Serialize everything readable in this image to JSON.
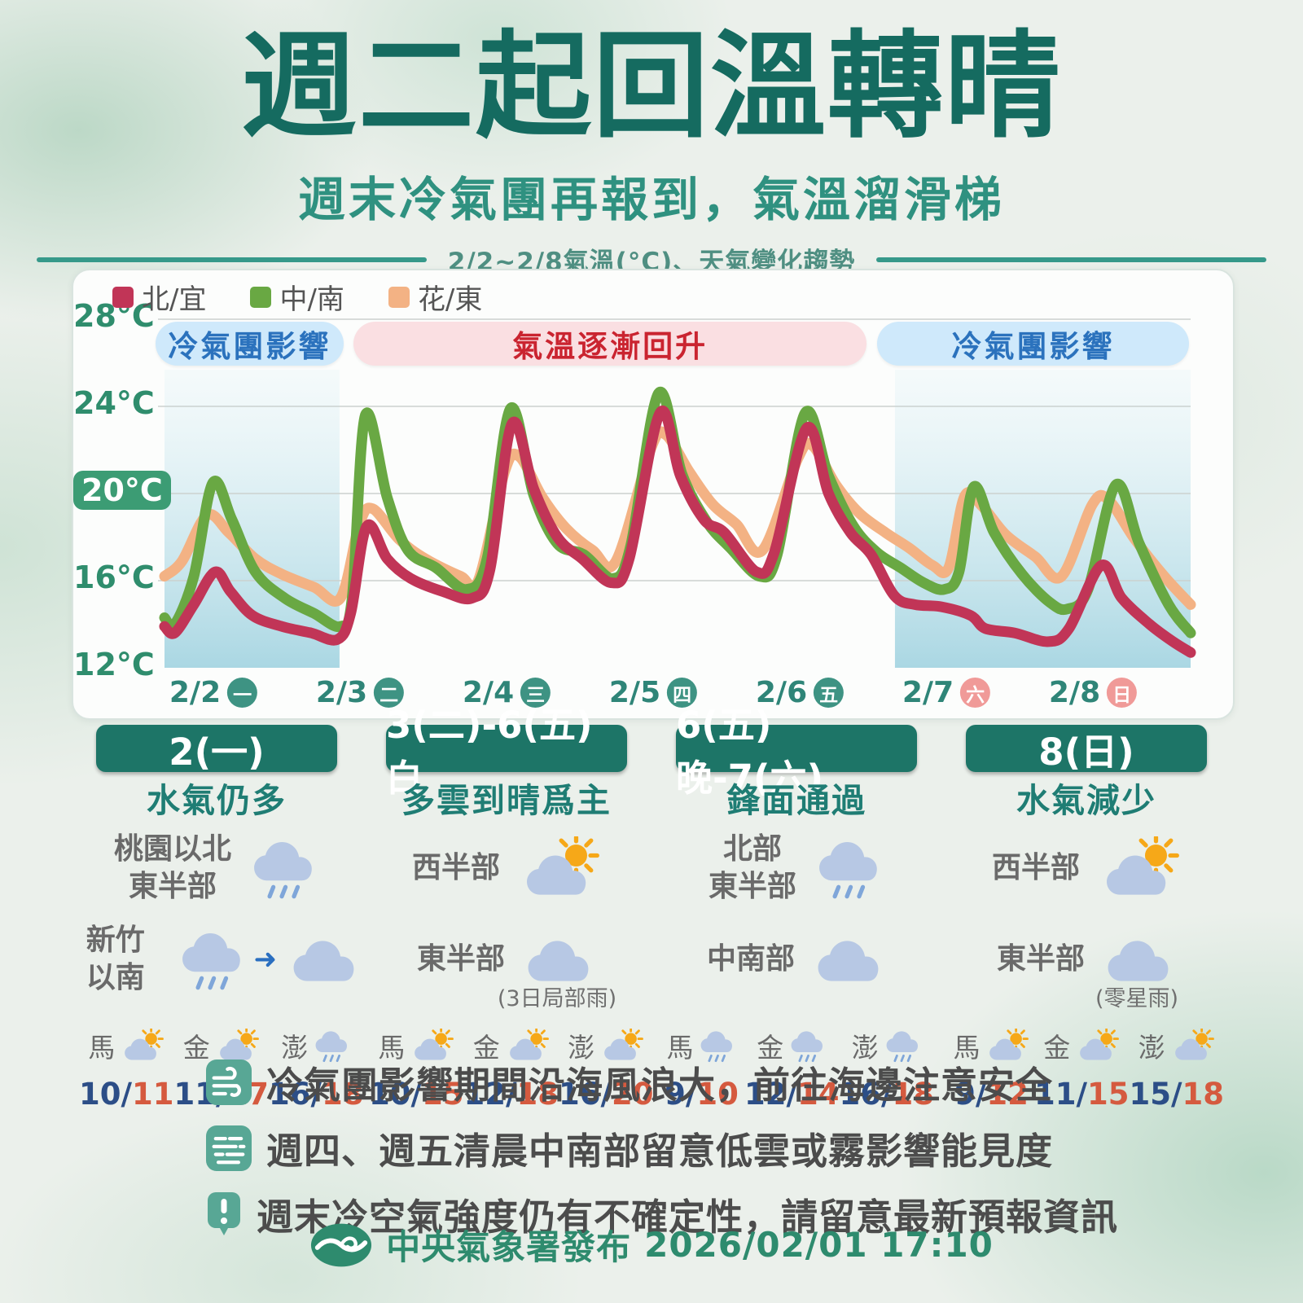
{
  "page": {
    "title": "週二起回溫轉晴",
    "subtitle": "週末冷氣團再報到，氣溫溜滑梯",
    "divider_caption": "2/2~2/8氣溫(°C)、天氣變化趨勢"
  },
  "chart": {
    "legend": [
      {
        "label": "北/宜",
        "color": "#c13557"
      },
      {
        "label": "中/南",
        "color": "#69a843"
      },
      {
        "label": "花/東",
        "color": "#f3b284"
      }
    ],
    "banners": [
      {
        "label": "冷氣團影響",
        "type": "cold",
        "start_day": -0.06,
        "end_day": 1.22
      },
      {
        "label": "氣溫逐漸回升",
        "type": "warm",
        "start_day": 1.29,
        "end_day": 4.79
      },
      {
        "label": "冷氣團影響",
        "type": "cold",
        "start_day": 4.86,
        "end_day": 6.99
      }
    ]
  },
  "chart_data": {
    "type": "line",
    "title": "2/2~2/8氣溫(°C)、天氣變化趨勢",
    "ylabel": "氣溫(°C)",
    "ylim": [
      12,
      28
    ],
    "y_ticks": [
      {
        "value": 28,
        "label": "28°C",
        "highlight": false
      },
      {
        "value": 24,
        "label": "24°C",
        "highlight": false
      },
      {
        "value": 20,
        "label": "20°C",
        "highlight": true
      },
      {
        "value": 16,
        "label": "16°C",
        "highlight": false
      },
      {
        "value": 12,
        "label": "12°C",
        "highlight": false
      }
    ],
    "gridline_values": [
      28,
      24,
      20,
      16
    ],
    "days": [
      {
        "date": "2/2",
        "weekday": "一",
        "weekend": false
      },
      {
        "date": "2/3",
        "weekday": "二",
        "weekend": false
      },
      {
        "date": "2/4",
        "weekday": "三",
        "weekend": false
      },
      {
        "date": "2/5",
        "weekday": "四",
        "weekend": false
      },
      {
        "date": "2/6",
        "weekday": "五",
        "weekend": false
      },
      {
        "date": "2/7",
        "weekday": "六",
        "weekend": true
      },
      {
        "date": "2/8",
        "weekday": "日",
        "weekend": true
      }
    ],
    "cold_air_spans_days": [
      [
        0,
        1.194
      ],
      [
        4.983,
        7
      ]
    ],
    "series": [
      {
        "name": "花/東",
        "color": "#f3b284",
        "points": [
          [
            0,
            16.2
          ],
          [
            0.12,
            16.9
          ],
          [
            0.29,
            19.0
          ],
          [
            0.44,
            18.2
          ],
          [
            0.62,
            17.0
          ],
          [
            0.8,
            16.3
          ],
          [
            1.02,
            15.7
          ],
          [
            1.2,
            15.2
          ],
          [
            1.33,
            18.6
          ],
          [
            1.42,
            19.3
          ],
          [
            1.6,
            17.9
          ],
          [
            1.78,
            17.0
          ],
          [
            2.02,
            16.2
          ],
          [
            2.14,
            16.0
          ],
          [
            2.32,
            21.0
          ],
          [
            2.42,
            21.7
          ],
          [
            2.58,
            19.8
          ],
          [
            2.74,
            18.4
          ],
          [
            2.92,
            17.4
          ],
          [
            3.08,
            16.9
          ],
          [
            3.32,
            22.1
          ],
          [
            3.42,
            22.7
          ],
          [
            3.58,
            21.0
          ],
          [
            3.74,
            19.5
          ],
          [
            3.9,
            18.6
          ],
          [
            4.08,
            17.4
          ],
          [
            4.32,
            21.6
          ],
          [
            4.42,
            22.2
          ],
          [
            4.58,
            20.4
          ],
          [
            4.74,
            19.1
          ],
          [
            4.92,
            18.2
          ],
          [
            5.08,
            17.5
          ],
          [
            5.24,
            16.7
          ],
          [
            5.35,
            16.6
          ],
          [
            5.46,
            19.9
          ],
          [
            5.58,
            19.4
          ],
          [
            5.74,
            18.1
          ],
          [
            5.94,
            17.1
          ],
          [
            6.12,
            16.2
          ],
          [
            6.33,
            19.5
          ],
          [
            6.44,
            19.7
          ],
          [
            6.62,
            17.9
          ],
          [
            6.82,
            16.2
          ],
          [
            7,
            14.9
          ]
        ]
      },
      {
        "name": "中/南",
        "color": "#69a843",
        "points": [
          [
            0,
            14.3
          ],
          [
            0.07,
            14.0
          ],
          [
            0.2,
            16.2
          ],
          [
            0.33,
            20.5
          ],
          [
            0.46,
            18.8
          ],
          [
            0.62,
            16.4
          ],
          [
            0.82,
            15.2
          ],
          [
            1.02,
            14.5
          ],
          [
            1.2,
            13.9
          ],
          [
            1.28,
            15.2
          ],
          [
            1.37,
            23.6
          ],
          [
            1.52,
            19.8
          ],
          [
            1.66,
            17.4
          ],
          [
            1.85,
            16.6
          ],
          [
            2.06,
            15.6
          ],
          [
            2.2,
            17.0
          ],
          [
            2.36,
            23.9
          ],
          [
            2.52,
            19.9
          ],
          [
            2.68,
            17.7
          ],
          [
            2.86,
            17.2
          ],
          [
            3.06,
            16.1
          ],
          [
            3.18,
            17.6
          ],
          [
            3.37,
            24.6
          ],
          [
            3.53,
            20.9
          ],
          [
            3.7,
            18.7
          ],
          [
            3.86,
            17.5
          ],
          [
            4.06,
            16.2
          ],
          [
            4.18,
            17.2
          ],
          [
            4.37,
            23.7
          ],
          [
            4.53,
            20.8
          ],
          [
            4.7,
            18.5
          ],
          [
            4.86,
            17.3
          ],
          [
            5.02,
            16.6
          ],
          [
            5.18,
            15.9
          ],
          [
            5.32,
            15.6
          ],
          [
            5.42,
            16.4
          ],
          [
            5.52,
            20.3
          ],
          [
            5.66,
            18.2
          ],
          [
            5.85,
            16.3
          ],
          [
            6.04,
            15.0
          ],
          [
            6.16,
            14.7
          ],
          [
            6.3,
            15.6
          ],
          [
            6.49,
            20.4
          ],
          [
            6.65,
            17.7
          ],
          [
            6.85,
            14.9
          ],
          [
            7,
            13.6
          ]
        ]
      },
      {
        "name": "北/宜",
        "color": "#c13557",
        "points": [
          [
            0,
            13.9
          ],
          [
            0.07,
            13.6
          ],
          [
            0.2,
            14.9
          ],
          [
            0.345,
            16.4
          ],
          [
            0.45,
            15.5
          ],
          [
            0.6,
            14.4
          ],
          [
            0.8,
            13.9
          ],
          [
            1.0,
            13.6
          ],
          [
            1.18,
            13.3
          ],
          [
            1.27,
            14.5
          ],
          [
            1.38,
            18.5
          ],
          [
            1.52,
            17.0
          ],
          [
            1.68,
            16.1
          ],
          [
            1.9,
            15.5
          ],
          [
            2.1,
            15.2
          ],
          [
            2.22,
            16.5
          ],
          [
            2.37,
            23.2
          ],
          [
            2.52,
            20.2
          ],
          [
            2.68,
            18.0
          ],
          [
            2.85,
            17.0
          ],
          [
            3.05,
            15.9
          ],
          [
            3.17,
            17.0
          ],
          [
            3.38,
            23.7
          ],
          [
            3.52,
            20.8
          ],
          [
            3.68,
            18.8
          ],
          [
            3.82,
            18.2
          ],
          [
            4.04,
            16.4
          ],
          [
            4.16,
            17.3
          ],
          [
            4.38,
            23.0
          ],
          [
            4.53,
            20.0
          ],
          [
            4.68,
            18.2
          ],
          [
            4.82,
            17.2
          ],
          [
            4.98,
            15.3
          ],
          [
            5.12,
            14.9
          ],
          [
            5.3,
            14.8
          ],
          [
            5.5,
            14.4
          ],
          [
            5.6,
            13.8
          ],
          [
            5.8,
            13.6
          ],
          [
            6.03,
            13.2
          ],
          [
            6.17,
            13.8
          ],
          [
            6.39,
            16.7
          ],
          [
            6.53,
            15.2
          ],
          [
            6.72,
            14.0
          ],
          [
            6.88,
            13.2
          ],
          [
            7,
            12.7
          ]
        ]
      }
    ]
  },
  "forecast_columns": [
    {
      "header": "2(一)",
      "summary": "水氣仍多",
      "regions": [
        {
          "label": [
            "桃園以北",
            "東半部"
          ],
          "icons": [
            "rain"
          ]
        },
        {
          "label": [
            "新竹以南"
          ],
          "icons": [
            "rain",
            "arrow",
            "cloud"
          ]
        }
      ],
      "islands": [
        {
          "name": "馬",
          "icon": "sun-cloud",
          "low": "10",
          "high": "11"
        },
        {
          "name": "金",
          "icon": "sun-cloud",
          "low": "11",
          "high": "17"
        },
        {
          "name": "澎",
          "icon": "rain",
          "low": "16",
          "high": "18"
        }
      ]
    },
    {
      "header": "3(二)-6(五)白",
      "summary": "多雲到晴爲主",
      "regions": [
        {
          "label": [
            "西半部"
          ],
          "icons": [
            "sun-cloud"
          ]
        },
        {
          "label": [
            "東半部"
          ],
          "icons": [
            "cloud"
          ],
          "note": "(3日局部雨)"
        }
      ],
      "islands": [
        {
          "name": "馬",
          "icon": "sun-cloud",
          "low": "10",
          "high": "15"
        },
        {
          "name": "金",
          "icon": "sun-cloud",
          "low": "12",
          "high": "18"
        },
        {
          "name": "澎",
          "icon": "sun-cloud",
          "low": "16",
          "high": "20"
        }
      ]
    },
    {
      "header": "6(五)晚-7(六)",
      "summary": "鋒面通過",
      "regions": [
        {
          "label": [
            "北部",
            "東半部"
          ],
          "icons": [
            "rain"
          ]
        },
        {
          "label": [
            "中南部"
          ],
          "icons": [
            "cloud"
          ]
        }
      ],
      "islands": [
        {
          "name": "馬",
          "icon": "rain",
          "low": "9",
          "high": "10"
        },
        {
          "name": "金",
          "icon": "rain",
          "low": "12",
          "high": "14"
        },
        {
          "name": "澎",
          "icon": "rain",
          "low": "16",
          "high": "18"
        }
      ]
    },
    {
      "header": "8(日)",
      "summary": "水氣減少",
      "regions": [
        {
          "label": [
            "西半部"
          ],
          "icons": [
            "sun-cloud"
          ]
        },
        {
          "label": [
            "東半部"
          ],
          "icons": [
            "cloud"
          ],
          "note": "(零星雨)"
        }
      ],
      "islands": [
        {
          "name": "馬",
          "icon": "sun-cloud",
          "low": "9",
          "high": "12"
        },
        {
          "name": "金",
          "icon": "sun-cloud",
          "low": "11",
          "high": "15"
        },
        {
          "name": "澎",
          "icon": "sun-cloud",
          "low": "15",
          "high": "18"
        }
      ]
    }
  ],
  "notes": [
    {
      "icon": "wind",
      "text": "冷氣團影響期間沿海風浪大，前往海邊注意安全"
    },
    {
      "icon": "fog",
      "text": "週四、週五清晨中南部留意低雲或霧影響能見度"
    },
    {
      "icon": "alert",
      "text": "週末冷空氣強度仍有不確定性，請留意最新預報資訊"
    }
  ],
  "footer": {
    "agency_line": "中央氣象署發布",
    "datetime": "2026/02/01 17:10"
  },
  "colors": {
    "title": "#156b60",
    "subtitle": "#2f9180",
    "cold_banner_bg": "#cfe9fb",
    "cold_banner_text": "#2b72bd",
    "warm_banner_bg": "#fadfe2",
    "warm_banner_text": "#ca2430",
    "series_north": "#c13557",
    "series_central_south": "#69a843",
    "series_east": "#f3b284",
    "weekday_circle": "#3e9383",
    "weekend_circle": "#f09a98",
    "period_pill": "#1d7567",
    "note_icon": "#58a795",
    "cloud": "#b7c8e4",
    "rain": "#7fa6d9",
    "sun": "#f6a818",
    "temp_low": "#2c4e87",
    "temp_high": "#d55a3f",
    "footer_green": "#2e8b6e"
  }
}
